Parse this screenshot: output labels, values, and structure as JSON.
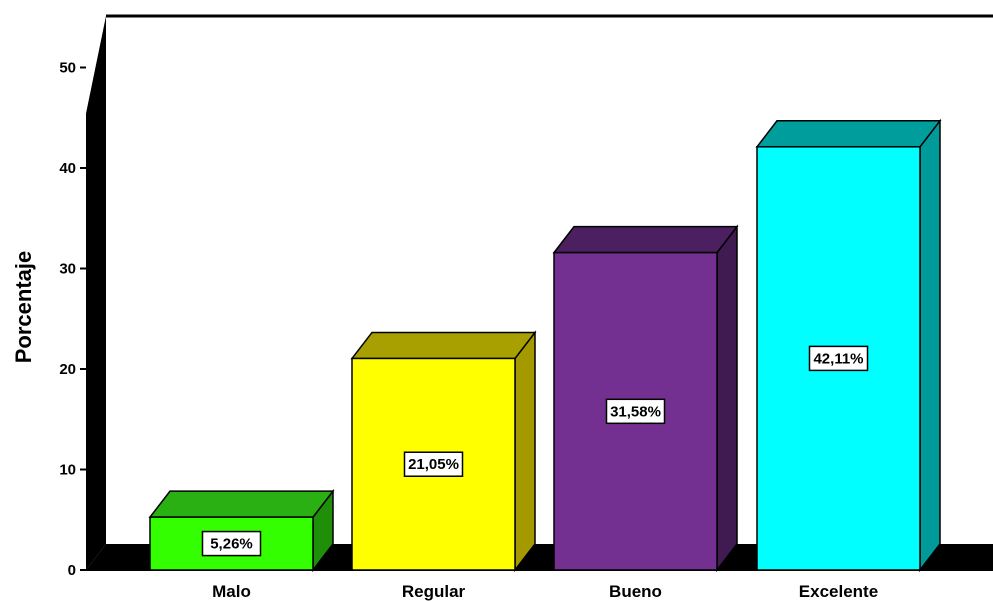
{
  "chart_data": {
    "type": "bar",
    "categories": [
      "Malo",
      "Regular",
      "Bueno",
      "Excelente"
    ],
    "values": [
      5.26,
      21.05,
      31.58,
      42.11
    ],
    "data_labels": [
      "5,26%",
      "21,05%",
      "31,58%",
      "42,11%"
    ],
    "title": "",
    "xlabel": "",
    "ylabel": "Porcentaje",
    "ylim": [
      0,
      50
    ],
    "yticks": [
      0,
      10,
      20,
      30,
      40,
      50
    ],
    "grid": false,
    "style": "3d",
    "colors": {
      "bars": [
        {
          "front": "#33ff00",
          "top": "#2ab012",
          "side": "#1f8f0a"
        },
        {
          "front": "#ffff00",
          "top": "#a89f00",
          "side": "#a49a00"
        },
        {
          "front": "#733090",
          "top": "#4c2060",
          "side": "#401b52"
        },
        {
          "front": "#00ffff",
          "top": "#009d9d",
          "side": "#009a9a"
        }
      ],
      "walls": "#000000",
      "background": "#ffffff"
    }
  }
}
